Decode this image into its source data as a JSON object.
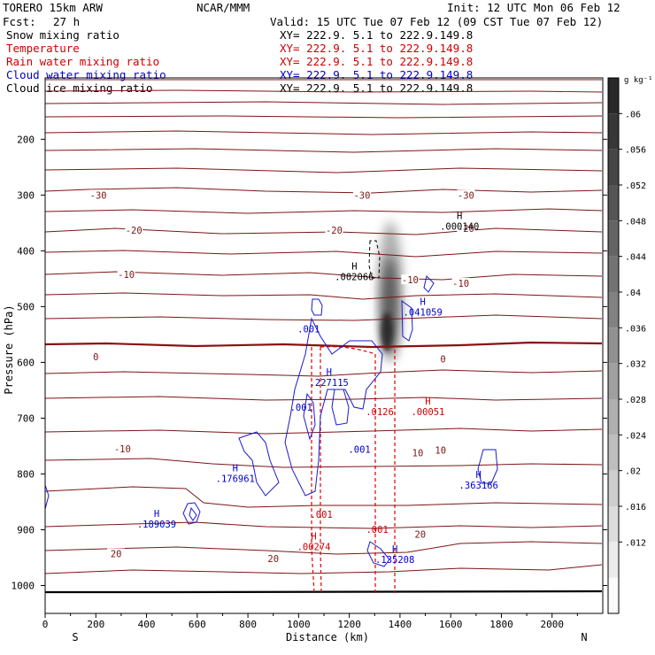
{
  "chart_data": {
    "type": "contour",
    "title": "Snow mixing ratio",
    "header": {
      "model": "TORERO  15km ARW",
      "org": "NCAR/MMM",
      "init": "Init: 12 UTC Mon 06 Feb 12",
      "fcst_label": "Fcst:",
      "fcst_value": "27 h",
      "valid": "Valid: 15 UTC Tue 07 Feb 12 (09 CST Tue 07 Feb 12)"
    },
    "fields": [
      {
        "name": "Snow mixing ratio",
        "color": "#000000",
        "xy": "XY= 222.9.  5.1 to 222.9.149.8",
        "xy_color": "#000000"
      },
      {
        "name": "Temperature",
        "color": "#cc0000",
        "xy": "XY= 222.9.  5.1 to 222.9.149.8",
        "xy_color": "#cc0000"
      },
      {
        "name": "Rain water mixing ratio",
        "color": "#cc0000",
        "xy": "XY= 222.9.  5.1 to 222.9.149.8",
        "xy_color": "#cc0000"
      },
      {
        "name": "Cloud water mixing ratio",
        "color": "#0000cc",
        "xy": "XY= 222.9.  5.1 to 222.9.149.8",
        "xy_color": "#0000cc"
      },
      {
        "name": "Cloud ice mixing ratio",
        "color": "#000000",
        "xy": "XY= 222.9.  5.1 to 222.9.149.8",
        "xy_color": "#000000"
      }
    ],
    "xlabel": "Distance (km)",
    "ylabel": "Pressure (hPa)",
    "xlim": [
      0,
      2200
    ],
    "ylim": [
      1050,
      90
    ],
    "x_ticks": [
      0,
      200,
      400,
      600,
      800,
      1000,
      1200,
      1400,
      1600,
      1800,
      2000
    ],
    "y_ticks": [
      200,
      300,
      400,
      500,
      600,
      700,
      800,
      900,
      1000
    ],
    "x_end_labels": {
      "left": "S",
      "right": "N"
    },
    "colorbar": {
      "unit": "g kg⁻¹",
      "ticks": [
        ".06",
        ".056",
        ".052",
        ".048",
        ".044",
        ".04",
        ".036",
        ".032",
        ".028",
        ".024",
        ".02",
        ".016",
        ".012"
      ],
      "tick_values": [
        0.06,
        0.056,
        0.052,
        0.048,
        0.044,
        0.04,
        0.036,
        0.032,
        0.028,
        0.024,
        0.02,
        0.016,
        0.012
      ],
      "levels": [
        0.064,
        0.06,
        0.056,
        0.052,
        0.048,
        0.044,
        0.04,
        0.036,
        0.032,
        0.028,
        0.024,
        0.02,
        0.016,
        0.012,
        0.008
      ]
    },
    "temperature_labels": [
      {
        "text": "-30",
        "x": 210,
        "p": 300
      },
      {
        "text": "-30",
        "x": 1250,
        "p": 300
      },
      {
        "text": "-30",
        "x": 1660,
        "p": 300
      },
      {
        "text": "-20",
        "x": 350,
        "p": 363
      },
      {
        "text": "-20",
        "x": 1140,
        "p": 363
      },
      {
        "text": "-20",
        "x": 1660,
        "p": 360
      },
      {
        "text": "-10",
        "x": 320,
        "p": 442
      },
      {
        "text": "-10",
        "x": 1440,
        "p": 452
      },
      {
        "text": "-10",
        "x": 1640,
        "p": 458
      },
      {
        "text": "0",
        "x": 200,
        "p": 590
      },
      {
        "text": "0",
        "x": 1570,
        "p": 594
      },
      {
        "text": "-10",
        "x": 305,
        "p": 755
      },
      {
        "text": "10",
        "x": 1470,
        "p": 762
      },
      {
        "text": "10",
        "x": 1560,
        "p": 757
      },
      {
        "text": "20",
        "x": 280,
        "p": 943
      },
      {
        "text": "20",
        "x": 900,
        "p": 952
      },
      {
        "text": "20",
        "x": 1480,
        "p": 908
      }
    ],
    "extrema_labels": [
      {
        "mark": "H",
        "value": ".000140",
        "x": 1635,
        "p": 356,
        "color": "#000000"
      },
      {
        "mark": "H",
        "value": ".002066",
        "x": 1220,
        "p": 446,
        "color": "#000000"
      },
      {
        "mark": "H",
        "value": ".041059",
        "x": 1490,
        "p": 510,
        "color": "#0000cc"
      },
      {
        "mark": "H",
        "value": ".227115",
        "x": 1120,
        "p": 636,
        "color": "#0000cc"
      },
      {
        "mark": "H",
        "value": ".00051",
        "x": 1510,
        "p": 688,
        "color": "#cc0000"
      },
      {
        "mark": "H",
        "value": ".176961",
        "x": 750,
        "p": 808,
        "color": "#0000cc"
      },
      {
        "mark": "H",
        "value": ".189039",
        "x": 440,
        "p": 890,
        "color": "#0000cc"
      },
      {
        "mark": "H",
        "value": ".00274",
        "x": 1060,
        "p": 930,
        "color": "#cc0000"
      },
      {
        "mark": "H",
        "value": ".135208",
        "x": 1380,
        "p": 953,
        "color": "#0000cc"
      },
      {
        "mark": "H",
        "value": ".363166",
        "x": 1710,
        "p": 820,
        "color": "#0000cc"
      }
    ],
    "contour_value_labels": [
      {
        "text": ".001",
        "x": 1040,
        "p": 540,
        "color": "#0000cc"
      },
      {
        "text": ".001",
        "x": 1010,
        "p": 680,
        "color": "#0000cc"
      },
      {
        "text": ".001",
        "x": 1240,
        "p": 756,
        "color": "#0000cc"
      },
      {
        "text": ".0126",
        "x": 1320,
        "p": 688,
        "color": "#cc0000"
      },
      {
        "text": ".001",
        "x": 1090,
        "p": 872,
        "color": "#cc0000"
      },
      {
        "text": ".001",
        "x": 1310,
        "p": 899,
        "color": "#cc0000"
      }
    ],
    "snow_maximum": {
      "x": 1335,
      "p": 545,
      "value": 0.062
    }
  }
}
